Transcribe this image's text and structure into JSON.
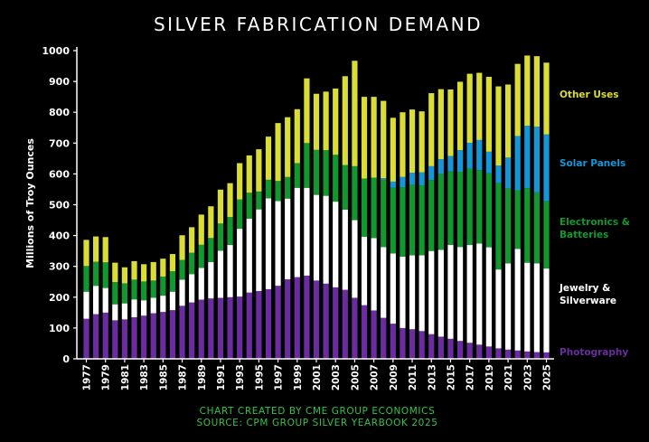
{
  "chart_data": {
    "type": "bar",
    "stacked": true,
    "title": "SILVER FABRICATION DEMAND",
    "ylabel": "Millions of Troy Ounces",
    "xlabel": "",
    "ylim": [
      0,
      1000
    ],
    "yticks": [
      0,
      100,
      200,
      300,
      400,
      500,
      600,
      700,
      800,
      900,
      1000
    ],
    "grid": false,
    "legend_position": "right",
    "categories": [
      "1977",
      "1978",
      "1979",
      "1980",
      "1981",
      "1982",
      "1983",
      "1984",
      "1985",
      "1986",
      "1987",
      "1988",
      "1989",
      "1990",
      "1991",
      "1992",
      "1993",
      "1994",
      "1995",
      "1996",
      "1997",
      "1998",
      "1999",
      "2000",
      "2001",
      "2002",
      "2003",
      "2004",
      "2005",
      "2006",
      "2007",
      "2008",
      "2009",
      "2010",
      "2011",
      "2012",
      "2013",
      "2014",
      "2015",
      "2016",
      "2017",
      "2018",
      "2019",
      "2020",
      "2021",
      "2022",
      "2023",
      "2024",
      "2025"
    ],
    "xtick_labels": [
      "1977",
      "1979",
      "1981",
      "1983",
      "1985",
      "1987",
      "1989",
      "1991",
      "1993",
      "1995",
      "1997",
      "1999",
      "2001",
      "2003",
      "2005",
      "2007",
      "2009",
      "2011",
      "2013",
      "2015",
      "2017",
      "2019",
      "2021",
      "2023",
      "2025"
    ],
    "series": [
      {
        "name": "Photography",
        "color": "#6a2d9f",
        "values": [
          130,
          145,
          150,
          125,
          128,
          135,
          140,
          148,
          152,
          158,
          172,
          183,
          192,
          196,
          198,
          200,
          202,
          215,
          220,
          226,
          237,
          258,
          265,
          270,
          254,
          244,
          232,
          224,
          198,
          174,
          157,
          133,
          114,
          100,
          96,
          90,
          80,
          72,
          65,
          58,
          52,
          46,
          40,
          34,
          30,
          27,
          24,
          22,
          21
        ]
      },
      {
        "name": "Jewelry & Silverware",
        "color": "#ffffff",
        "values": [
          88,
          92,
          80,
          52,
          52,
          58,
          50,
          50,
          53,
          60,
          85,
          92,
          103,
          118,
          153,
          170,
          220,
          240,
          265,
          295,
          275,
          262,
          290,
          285,
          278,
          285,
          278,
          260,
          252,
          222,
          235,
          230,
          228,
          232,
          240,
          246,
          270,
          282,
          305,
          305,
          318,
          328,
          322,
          256,
          280,
          330,
          288,
          288,
          272
        ]
      },
      {
        "name": "Electronics & Batteries",
        "color": "#11992f",
        "values": [
          83,
          78,
          83,
          72,
          65,
          64,
          61,
          56,
          62,
          66,
          64,
          69,
          75,
          78,
          88,
          90,
          95,
          84,
          58,
          60,
          65,
          70,
          80,
          145,
          146,
          148,
          152,
          145,
          175,
          189,
          196,
          218,
          213,
          225,
          228,
          227,
          230,
          246,
          238,
          244,
          247,
          238,
          240,
          280,
          243,
          190,
          242,
          230,
          218
        ]
      },
      {
        "name": "Solar Panels",
        "color": "#1596d6",
        "values": [
          0,
          0,
          0,
          0,
          0,
          0,
          0,
          0,
          0,
          0,
          0,
          0,
          0,
          0,
          0,
          0,
          0,
          0,
          0,
          0,
          0,
          0,
          0,
          0,
          0,
          0,
          0,
          0,
          0,
          0,
          0,
          5,
          20,
          33,
          40,
          42,
          45,
          48,
          50,
          70,
          84,
          98,
          70,
          57,
          100,
          176,
          202,
          213,
          217
        ]
      },
      {
        "name": "Other Uses",
        "color": "#d9dd35",
        "values": [
          85,
          82,
          82,
          63,
          52,
          60,
          56,
          60,
          58,
          56,
          80,
          83,
          98,
          103,
          110,
          110,
          118,
          121,
          137,
          140,
          188,
          194,
          175,
          210,
          182,
          190,
          215,
          288,
          342,
          265,
          262,
          251,
          207,
          210,
          205,
          198,
          237,
          227,
          216,
          222,
          224,
          218,
          243,
          257,
          237,
          234,
          228,
          229,
          233
        ]
      }
    ]
  },
  "credit": {
    "line1": "CHART CREATED BY CME GROUP ECONOMICS",
    "line2": "SOURCE: CPM GROUP SILVER YEARBOOK 2025"
  },
  "colors": {
    "background": "#000000",
    "axis": "#ffffff",
    "text": "#ffffff",
    "credit": "#36c24a"
  }
}
